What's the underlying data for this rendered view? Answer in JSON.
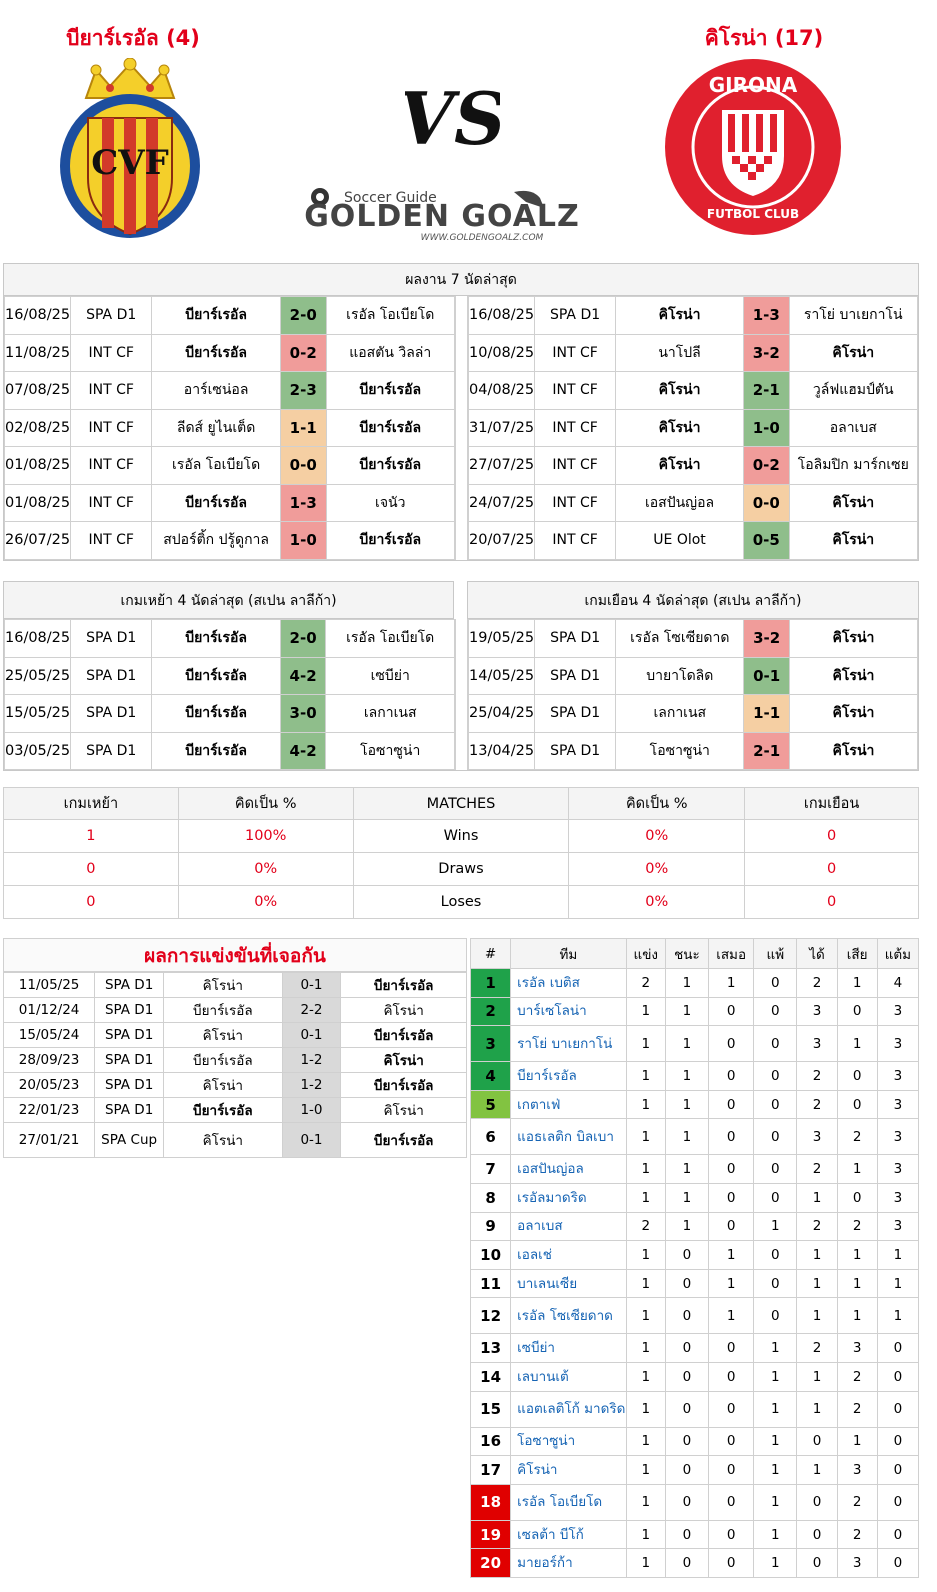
{
  "header": {
    "home_title": "บียาร์เรอัล (4)",
    "away_title": "คิโรน่า (17)",
    "vs_text": "VS",
    "logo_top": "Soccer Guide",
    "logo_main": "GOLDEN GOALZ",
    "logo_url": "WWW.GOLDENGOALZ.COM",
    "home_badge_text": "CVF",
    "away_badge_top": "GIRONA",
    "away_badge_bottom": "FUTBOL CLUB"
  },
  "colors": {
    "accent_red": "#e2001a",
    "win": "#8fbe8b",
    "draw": "#f5cfa3",
    "loss": "#f09c9a",
    "link": "#1664b4"
  },
  "last7": {
    "title": "ผลงาน 7 นัดล่าสุด",
    "home": [
      {
        "date": "16/08/25",
        "comp": "SPA D1",
        "team1": "บียาร์เรอัล",
        "score": "2-0",
        "team2": "เรอัล โอเบียโด",
        "res": "win",
        "bold": 1
      },
      {
        "date": "11/08/25",
        "comp": "INT CF",
        "team1": "บียาร์เรอัล",
        "score": "0-2",
        "team2": "แอสตัน วิลล่า",
        "res": "loss",
        "bold": 1
      },
      {
        "date": "07/08/25",
        "comp": "INT CF",
        "team1": "อาร์เซน่อล",
        "score": "2-3",
        "team2": "บียาร์เรอัล",
        "res": "win",
        "bold": 2
      },
      {
        "date": "02/08/25",
        "comp": "INT CF",
        "team1": "ลีดส์ ยูไนเต็ด",
        "score": "1-1",
        "team2": "บียาร์เรอัล",
        "res": "draw",
        "bold": 2
      },
      {
        "date": "01/08/25",
        "comp": "INT CF",
        "team1": "เรอัล โอเบียโด",
        "score": "0-0",
        "team2": "บียาร์เรอัล",
        "res": "draw",
        "bold": 2
      },
      {
        "date": "01/08/25",
        "comp": "INT CF",
        "team1": "บียาร์เรอัล",
        "score": "1-3",
        "team2": "เจนัว",
        "res": "loss",
        "bold": 1
      },
      {
        "date": "26/07/25",
        "comp": "INT CF",
        "team1": "สปอร์ติ้ก ปรู้ดูกาล",
        "score": "1-0",
        "team2": "บียาร์เรอัล",
        "res": "loss",
        "bold": 2
      }
    ],
    "away": [
      {
        "date": "16/08/25",
        "comp": "SPA D1",
        "team1": "คิโรน่า",
        "score": "1-3",
        "team2": "ราโย่ บาเยกาโน่",
        "res": "loss",
        "bold": 1
      },
      {
        "date": "10/08/25",
        "comp": "INT CF",
        "team1": "นาโปลี",
        "score": "3-2",
        "team2": "คิโรน่า",
        "res": "loss",
        "bold": 2
      },
      {
        "date": "04/08/25",
        "comp": "INT CF",
        "team1": "คิโรน่า",
        "score": "2-1",
        "team2": "วูล์ฟแฮมป์ตัน",
        "res": "win",
        "bold": 1
      },
      {
        "date": "31/07/25",
        "comp": "INT CF",
        "team1": "คิโรน่า",
        "score": "1-0",
        "team2": "อลาเบส",
        "res": "win",
        "bold": 1
      },
      {
        "date": "27/07/25",
        "comp": "INT CF",
        "team1": "คิโรน่า",
        "score": "0-2",
        "team2": "โอลิมปิก มาร์กเซย",
        "res": "loss",
        "bold": 1
      },
      {
        "date": "24/07/25",
        "comp": "INT CF",
        "team1": "เอสปันญ่อล",
        "score": "0-0",
        "team2": "คิโรน่า",
        "res": "draw",
        "bold": 2
      },
      {
        "date": "20/07/25",
        "comp": "INT CF",
        "team1": "UE Olot",
        "score": "0-5",
        "team2": "คิโรน่า",
        "res": "win",
        "bold": 2
      }
    ]
  },
  "last4": {
    "home_title": "เกมเหย้า 4 นัดล่าสุด (สเปน ลาลีก้า)",
    "away_title": "เกมเยือน 4 นัดล่าสุด (สเปน ลาลีก้า)",
    "home": [
      {
        "date": "16/08/25",
        "comp": "SPA D1",
        "team1": "บียาร์เรอัล",
        "score": "2-0",
        "team2": "เรอัล โอเบียโด",
        "res": "win",
        "bold": 1
      },
      {
        "date": "25/05/25",
        "comp": "SPA D1",
        "team1": "บียาร์เรอัล",
        "score": "4-2",
        "team2": "เซบีย่า",
        "res": "win",
        "bold": 1
      },
      {
        "date": "15/05/25",
        "comp": "SPA D1",
        "team1": "บียาร์เรอัล",
        "score": "3-0",
        "team2": "เลกาเนส",
        "res": "win",
        "bold": 1
      },
      {
        "date": "03/05/25",
        "comp": "SPA D1",
        "team1": "บียาร์เรอัล",
        "score": "4-2",
        "team2": "โอซาซูน่า",
        "res": "win",
        "bold": 1
      }
    ],
    "away": [
      {
        "date": "19/05/25",
        "comp": "SPA D1",
        "team1": "เรอัล โซเซียดาด",
        "score": "3-2",
        "team2": "คิโรน่า",
        "res": "loss",
        "bold": 2
      },
      {
        "date": "14/05/25",
        "comp": "SPA D1",
        "team1": "บายาโดลิด",
        "score": "0-1",
        "team2": "คิโรน่า",
        "res": "win",
        "bold": 2
      },
      {
        "date": "25/04/25",
        "comp": "SPA D1",
        "team1": "เลกาเนส",
        "score": "1-1",
        "team2": "คิโรน่า",
        "res": "draw",
        "bold": 2
      },
      {
        "date": "13/04/25",
        "comp": "SPA D1",
        "team1": "โอซาซูน่า",
        "score": "2-1",
        "team2": "คิโรน่า",
        "res": "loss",
        "bold": 2
      }
    ]
  },
  "stats": {
    "headers": [
      "เกมเหย้า",
      "คิดเป็น %",
      "MATCHES",
      "คิดเป็น %",
      "เกมเยือน"
    ],
    "rows": [
      {
        "home": "1",
        "home_pct": "100%",
        "label": "Wins",
        "away_pct": "0%",
        "away": "0"
      },
      {
        "home": "0",
        "home_pct": "0%",
        "label": "Draws",
        "away_pct": "0%",
        "away": "0"
      },
      {
        "home": "0",
        "home_pct": "0%",
        "label": "Loses",
        "away_pct": "0%",
        "away": "0"
      }
    ]
  },
  "h2h": {
    "title": "ผลการแข่งขันที่เจอกัน",
    "rows": [
      {
        "date": "11/05/25",
        "comp": "SPA D1",
        "team1": "คิโรน่า",
        "score": "0-1",
        "team2": "บียาร์เรอัล",
        "bold": 2
      },
      {
        "date": "01/12/24",
        "comp": "SPA D1",
        "team1": "บียาร์เรอัล",
        "score": "2-2",
        "team2": "คิโรน่า",
        "bold": 0
      },
      {
        "date": "15/05/24",
        "comp": "SPA D1",
        "team1": "คิโรน่า",
        "score": "0-1",
        "team2": "บียาร์เรอัล",
        "bold": 2
      },
      {
        "date": "28/09/23",
        "comp": "SPA D1",
        "team1": "บียาร์เรอัล",
        "score": "1-2",
        "team2": "คิโรน่า",
        "bold": 2
      },
      {
        "date": "20/05/23",
        "comp": "SPA D1",
        "team1": "คิโรน่า",
        "score": "1-2",
        "team2": "บียาร์เรอัล",
        "bold": 2
      },
      {
        "date": "22/01/23",
        "comp": "SPA D1",
        "team1": "บียาร์เรอัล",
        "score": "1-0",
        "team2": "คิโรน่า",
        "bold": 1
      },
      {
        "date": "27/01/21",
        "comp": "SPA Cup",
        "team1": "คิโรน่า",
        "score": "0-1",
        "team2": "บียาร์เรอัล",
        "bold": 2
      }
    ]
  },
  "league": {
    "headers": [
      "#",
      "ทีม",
      "แข่ง",
      "ชนะ",
      "เสมอ",
      "แพ้",
      "ได้",
      "เสีย",
      "แต้ม"
    ],
    "rows": [
      {
        "pos": "1",
        "team": "เรอัล เบติส",
        "p": "2",
        "w": "1",
        "d": "1",
        "l": "0",
        "gf": "2",
        "ga": "1",
        "pts": "4",
        "zone": "green"
      },
      {
        "pos": "2",
        "team": "บาร์เซโลน่า",
        "p": "1",
        "w": "1",
        "d": "0",
        "l": "0",
        "gf": "3",
        "ga": "0",
        "pts": "3",
        "zone": "green"
      },
      {
        "pos": "3",
        "team": "ราโย่ บาเยกาโน่",
        "p": "1",
        "w": "1",
        "d": "0",
        "l": "0",
        "gf": "3",
        "ga": "1",
        "pts": "3",
        "zone": "green"
      },
      {
        "pos": "4",
        "team": "บียาร์เรอัล",
        "p": "1",
        "w": "1",
        "d": "0",
        "l": "0",
        "gf": "2",
        "ga": "0",
        "pts": "3",
        "zone": "green"
      },
      {
        "pos": "5",
        "team": "เกตาเฟ่",
        "p": "1",
        "w": "1",
        "d": "0",
        "l": "0",
        "gf": "2",
        "ga": "0",
        "pts": "3",
        "zone": "lime"
      },
      {
        "pos": "6",
        "team": "แอธเลติก บิลเบา",
        "p": "1",
        "w": "1",
        "d": "0",
        "l": "0",
        "gf": "3",
        "ga": "2",
        "pts": "3",
        "zone": ""
      },
      {
        "pos": "7",
        "team": "เอสปันญ่อล",
        "p": "1",
        "w": "1",
        "d": "0",
        "l": "0",
        "gf": "2",
        "ga": "1",
        "pts": "3",
        "zone": ""
      },
      {
        "pos": "8",
        "team": "เรอัลมาดริด",
        "p": "1",
        "w": "1",
        "d": "0",
        "l": "0",
        "gf": "1",
        "ga": "0",
        "pts": "3",
        "zone": ""
      },
      {
        "pos": "9",
        "team": "อลาเบส",
        "p": "2",
        "w": "1",
        "d": "0",
        "l": "1",
        "gf": "2",
        "ga": "2",
        "pts": "3",
        "zone": ""
      },
      {
        "pos": "10",
        "team": "เอลเช่",
        "p": "1",
        "w": "0",
        "d": "1",
        "l": "0",
        "gf": "1",
        "ga": "1",
        "pts": "1",
        "zone": ""
      },
      {
        "pos": "11",
        "team": "บาเลนเซีย",
        "p": "1",
        "w": "0",
        "d": "1",
        "l": "0",
        "gf": "1",
        "ga": "1",
        "pts": "1",
        "zone": ""
      },
      {
        "pos": "12",
        "team": "เรอัล โซเซียดาด",
        "p": "1",
        "w": "0",
        "d": "1",
        "l": "0",
        "gf": "1",
        "ga": "1",
        "pts": "1",
        "zone": ""
      },
      {
        "pos": "13",
        "team": "เซบีย่า",
        "p": "1",
        "w": "0",
        "d": "0",
        "l": "1",
        "gf": "2",
        "ga": "3",
        "pts": "0",
        "zone": ""
      },
      {
        "pos": "14",
        "team": "เลบานเต้",
        "p": "1",
        "w": "0",
        "d": "0",
        "l": "1",
        "gf": "1",
        "ga": "2",
        "pts": "0",
        "zone": ""
      },
      {
        "pos": "15",
        "team": "แอตเลติโก้ มาดริด",
        "p": "1",
        "w": "0",
        "d": "0",
        "l": "1",
        "gf": "1",
        "ga": "2",
        "pts": "0",
        "zone": ""
      },
      {
        "pos": "16",
        "team": "โอซาซูน่า",
        "p": "1",
        "w": "0",
        "d": "0",
        "l": "1",
        "gf": "0",
        "ga": "1",
        "pts": "0",
        "zone": ""
      },
      {
        "pos": "17",
        "team": "คิโรน่า",
        "p": "1",
        "w": "0",
        "d": "0",
        "l": "1",
        "gf": "1",
        "ga": "3",
        "pts": "0",
        "zone": ""
      },
      {
        "pos": "18",
        "team": "เรอัล โอเบียโด",
        "p": "1",
        "w": "0",
        "d": "0",
        "l": "1",
        "gf": "0",
        "ga": "2",
        "pts": "0",
        "zone": "red"
      },
      {
        "pos": "19",
        "team": "เซลต้า บีโก้",
        "p": "1",
        "w": "0",
        "d": "0",
        "l": "1",
        "gf": "0",
        "ga": "2",
        "pts": "0",
        "zone": "red"
      },
      {
        "pos": "20",
        "team": "มายอร์ก้า",
        "p": "1",
        "w": "0",
        "d": "0",
        "l": "1",
        "gf": "0",
        "ga": "3",
        "pts": "0",
        "zone": "red"
      }
    ]
  }
}
